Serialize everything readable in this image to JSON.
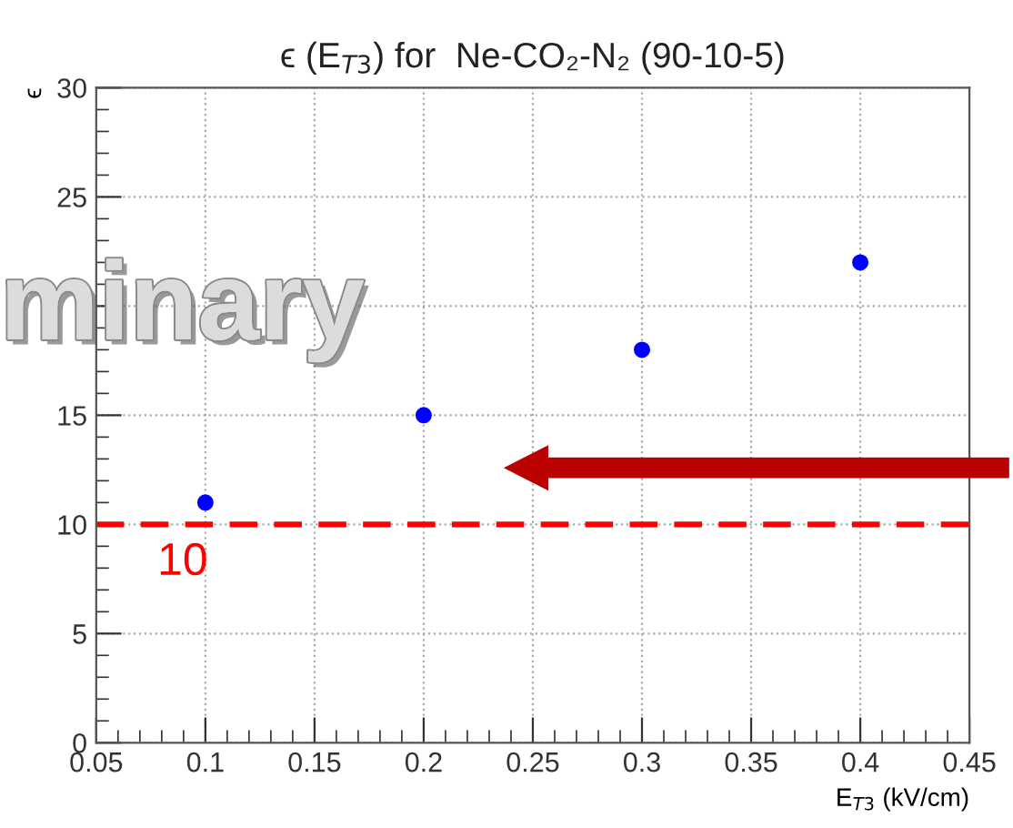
{
  "chart_data": {
    "type": "scatter",
    "title": "ϵ (E$_{T3}$) for  Ne-CO₂-N₂ (90-10-5)",
    "xlabel": "E$_{T3}$ (kV/cm)",
    "ylabel": "ϵ",
    "x": [
      0.1,
      0.2,
      0.3,
      0.4
    ],
    "series": [
      {
        "color": "#0000ff",
        "values": [
          11,
          15,
          18,
          22
        ]
      }
    ],
    "xlim": [
      0.05,
      0.45
    ],
    "xticks": [
      0.05,
      0.1,
      0.15,
      0.2,
      0.25,
      0.3,
      0.35,
      0.4,
      0.45
    ],
    "ylim": [
      0,
      30
    ],
    "yticks": [
      0,
      5,
      10,
      15,
      {
        "value": 20,
        "label": null
      },
      25,
      30
    ],
    "ref_lines": [
      {
        "axis": "y",
        "value": 10,
        "label": "10",
        "color": "#ff0000",
        "line_style": "dashed"
      }
    ],
    "annotations": [
      "minary"
    ],
    "marker": "circle",
    "grid": true
  }
}
